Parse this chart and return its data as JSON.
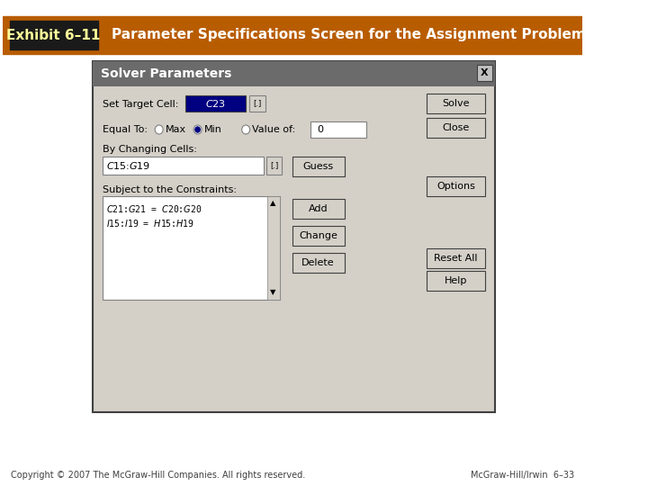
{
  "title_bg_color": "#B85C00",
  "title_text_left": "Exhibit 6–11",
  "title_text_right": "Parameter Specifications Screen for the Assignment Problem",
  "title_left_bg": "#1a1a1a",
  "title_text_color": "#FFFFFF",
  "title_text_color_left": "#FFFF99",
  "footer_left": "Copyright © 2007 The McGraw-Hill Companies. All rights reserved.",
  "footer_right": "McGraw-Hill/Irwin  6–33",
  "bg_color": "#FFFFFF",
  "dialog_bg": "#D4D0C8",
  "dialog_title_text": "Solver Parameters",
  "set_target_cell_label": "Set Target Cell:",
  "set_target_cell_value": "$C$23",
  "equal_to_label": "Equal To:",
  "max_label": "Max",
  "min_label": "Min",
  "value_of_label": "Value of:",
  "value_of_value": "0",
  "by_changing_label": "By Changing Cells:",
  "changing_value": "$C$15:$G$19",
  "subject_label": "Subject to the Constraints:",
  "constraints": [
    "$C$21:$G$21 = $C$20:$G$20",
    "$I$15:$I$19 = $H$15:$H$19"
  ],
  "buttons_right": [
    "Solve",
    "Close",
    "Options",
    "Reset All",
    "Help"
  ],
  "buttons_mid": [
    "Guess",
    "Add",
    "Change",
    "Delete"
  ]
}
